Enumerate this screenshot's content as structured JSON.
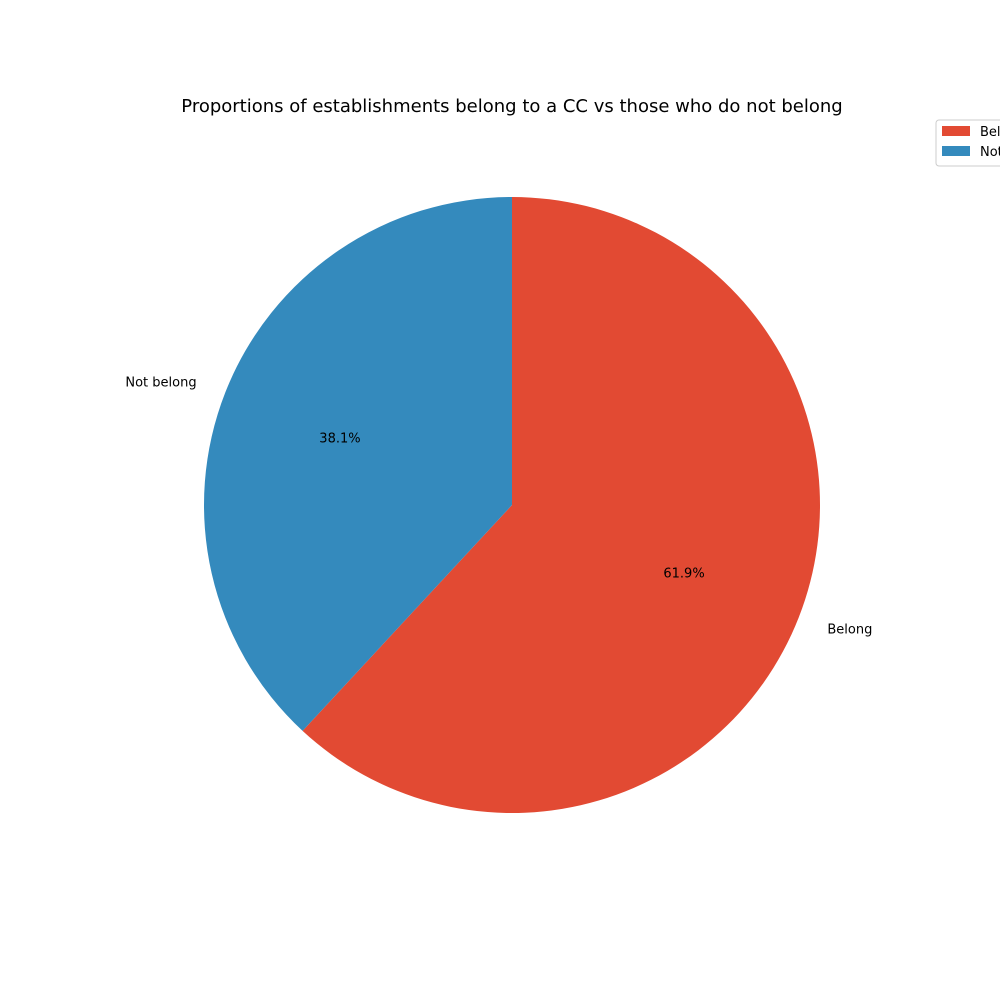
{
  "chart_data": {
    "type": "pie",
    "title": "Proportions of establishments belong to a CC vs those who do not belong",
    "slices": [
      {
        "label": "Belong",
        "value": 61.9,
        "pct_label": "61.9%",
        "color": "#e24a33"
      },
      {
        "label": "Not belong",
        "value": 38.1,
        "pct_label": "38.1%",
        "color": "#348abd"
      }
    ],
    "start_angle_deg": 90,
    "direction": "clockwise",
    "legend": {
      "placement": "top-right",
      "entries": [
        "Belong",
        "Not belong"
      ]
    }
  }
}
